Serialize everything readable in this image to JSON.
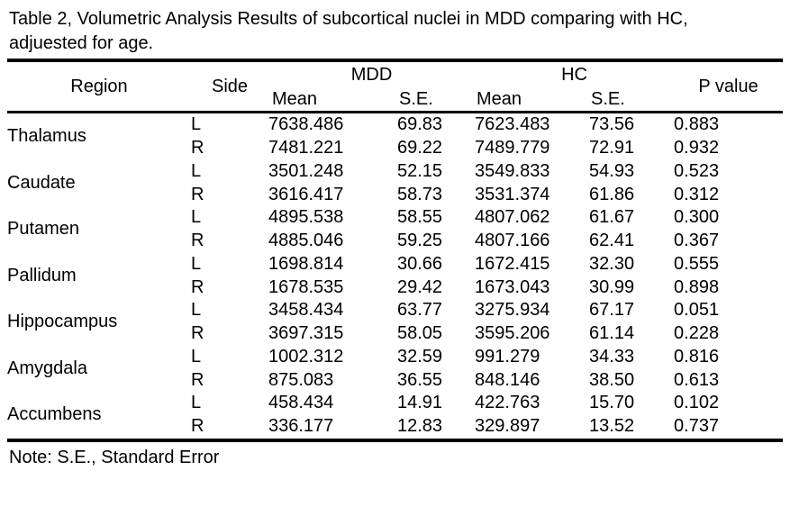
{
  "caption": {
    "lines": [
      "Table 2, Volumetric Analysis Results of subcortical nuclei in MDD comparing with HC,",
      "adjuested for age."
    ]
  },
  "table": {
    "columns": {
      "region": "Region",
      "side": "Side",
      "groups": [
        {
          "label": "MDD",
          "sub": [
            "Mean",
            "S.E."
          ]
        },
        {
          "label": "HC",
          "sub": [
            "Mean",
            "S.E."
          ]
        }
      ],
      "p_value": "P value"
    },
    "rows": [
      {
        "region": "Thalamus",
        "sides": [
          {
            "side": "L",
            "mdd_mean": "7638.486",
            "mdd_se": "69.83",
            "hc_mean": "7623.483",
            "hc_se": "73.56",
            "p": "0.883"
          },
          {
            "side": "R",
            "mdd_mean": "7481.221",
            "mdd_se": "69.22",
            "hc_mean": "7489.779",
            "hc_se": "72.91",
            "p": "0.932"
          }
        ]
      },
      {
        "region": "Caudate",
        "sides": [
          {
            "side": "L",
            "mdd_mean": "3501.248",
            "mdd_se": "52.15",
            "hc_mean": "3549.833",
            "hc_se": "54.93",
            "p": "0.523"
          },
          {
            "side": "R",
            "mdd_mean": "3616.417",
            "mdd_se": "58.73",
            "hc_mean": "3531.374",
            "hc_se": "61.86",
            "p": "0.312"
          }
        ]
      },
      {
        "region": "Putamen",
        "sides": [
          {
            "side": "L",
            "mdd_mean": "4895.538",
            "mdd_se": "58.55",
            "hc_mean": "4807.062",
            "hc_se": "61.67",
            "p": "0.300"
          },
          {
            "side": "R",
            "mdd_mean": "4885.046",
            "mdd_se": "59.25",
            "hc_mean": "4807.166",
            "hc_se": "62.41",
            "p": "0.367"
          }
        ]
      },
      {
        "region": "Pallidum",
        "sides": [
          {
            "side": "L",
            "mdd_mean": "1698.814",
            "mdd_se": "30.66",
            "hc_mean": "1672.415",
            "hc_se": "32.30",
            "p": "0.555"
          },
          {
            "side": "R",
            "mdd_mean": "1678.535",
            "mdd_se": "29.42",
            "hc_mean": "1673.043",
            "hc_se": "30.99",
            "p": "0.898"
          }
        ]
      },
      {
        "region": "Hippocampus",
        "sides": [
          {
            "side": "L",
            "mdd_mean": "3458.434",
            "mdd_se": "63.77",
            "hc_mean": "3275.934",
            "hc_se": "67.17",
            "p": "0.051"
          },
          {
            "side": "R",
            "mdd_mean": "3697.315",
            "mdd_se": "58.05",
            "hc_mean": "3595.206",
            "hc_se": "61.14",
            "p": "0.228"
          }
        ]
      },
      {
        "region": "Amygdala",
        "sides": [
          {
            "side": "L",
            "mdd_mean": "1002.312",
            "mdd_se": "32.59",
            "hc_mean": "991.279",
            "hc_se": "34.33",
            "p": "0.816"
          },
          {
            "side": "R",
            "mdd_mean": "875.083",
            "mdd_se": "36.55",
            "hc_mean": "848.146",
            "hc_se": "38.50",
            "p": "0.613"
          }
        ]
      },
      {
        "region": "Accumbens",
        "sides": [
          {
            "side": "L",
            "mdd_mean": "458.434",
            "mdd_se": "14.91",
            "hc_mean": "422.763",
            "hc_se": "15.70",
            "p": "0.102"
          },
          {
            "side": "R",
            "mdd_mean": "336.177",
            "mdd_se": "12.83",
            "hc_mean": "329.897",
            "hc_se": "13.52",
            "p": "0.737"
          }
        ]
      }
    ]
  },
  "note": "Note: S.E., Standard Error"
}
